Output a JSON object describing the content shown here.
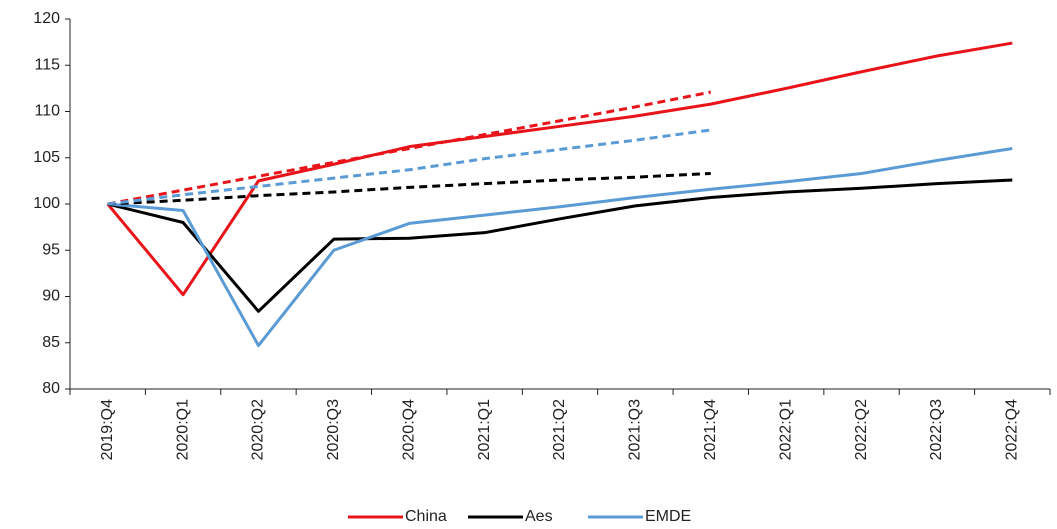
{
  "chart_data": {
    "type": "line",
    "categories": [
      "2019:Q4",
      "2020:Q1",
      "2020:Q2",
      "2020:Q3",
      "2020:Q4",
      "2021:Q1",
      "2021:Q2",
      "2021:Q3",
      "2021:Q4",
      "2022:Q1",
      "2022:Q2",
      "2022:Q3",
      "2022:Q4"
    ],
    "series": [
      {
        "name": "China",
        "color": "#e8141a",
        "values": [
          100,
          90.2,
          102.5,
          104.3,
          106.2,
          107.3,
          108.4,
          109.5,
          110.8,
          112.5,
          114.3,
          116,
          117.4
        ]
      },
      {
        "name": "Aes",
        "color": "#000000",
        "values": [
          100,
          98,
          88.4,
          96.2,
          96.3,
          96.9,
          98.4,
          99.8,
          100.7,
          101.3,
          101.7,
          102.2,
          102.6
        ]
      },
      {
        "name": "EMDE",
        "color": "#5b9bd5",
        "values": [
          100,
          99.3,
          84.7,
          95,
          97.9,
          98.8,
          99.7,
          100.7,
          101.6,
          102.4,
          103.3,
          104.7,
          106
        ]
      },
      {
        "color": "#e8141a",
        "dash": true,
        "values": [
          100,
          101.5,
          103,
          104.5,
          106,
          107.5,
          109,
          110.5,
          112.1,
          null,
          null,
          null,
          null
        ]
      },
      {
        "color": "#000000",
        "dash": true,
        "values": [
          100,
          100.4,
          100.9,
          101.3,
          101.8,
          102.2,
          102.6,
          102.9,
          103.3,
          null,
          null,
          null,
          null
        ]
      },
      {
        "color": "#5b9bd5",
        "dash": true,
        "values": [
          100,
          101,
          101.9,
          102.8,
          103.7,
          104.9,
          105.9,
          106.9,
          108,
          null,
          null,
          null,
          null
        ]
      }
    ],
    "ylim": [
      80,
      120
    ],
    "yticks": [
      80,
      85,
      90,
      95,
      100,
      105,
      110,
      115,
      120
    ],
    "grid": false,
    "legend": "bottom"
  }
}
